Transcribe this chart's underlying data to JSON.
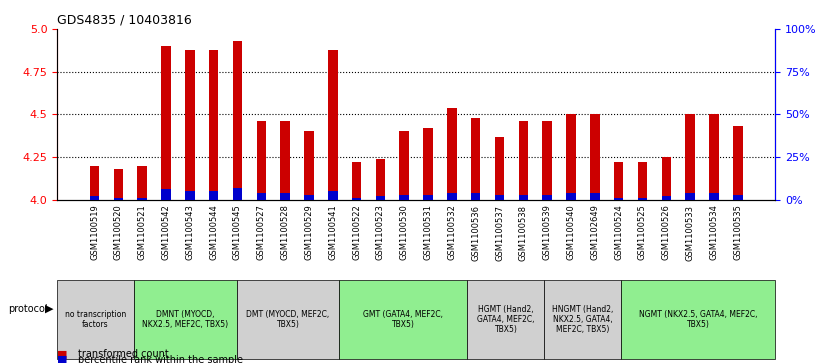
{
  "title": "GDS4835 / 10403816",
  "samples": [
    "GSM1100519",
    "GSM1100520",
    "GSM1100521",
    "GSM1100542",
    "GSM1100543",
    "GSM1100544",
    "GSM1100545",
    "GSM1100527",
    "GSM1100528",
    "GSM1100529",
    "GSM1100541",
    "GSM1100522",
    "GSM1100523",
    "GSM1100530",
    "GSM1100531",
    "GSM1100532",
    "GSM1100536",
    "GSM1100537",
    "GSM1100538",
    "GSM1100539",
    "GSM1100540",
    "GSM1102649",
    "GSM1100524",
    "GSM1100525",
    "GSM1100526",
    "GSM1100533",
    "GSM1100534",
    "GSM1100535"
  ],
  "red_values": [
    4.2,
    4.18,
    4.2,
    4.9,
    4.88,
    4.88,
    4.93,
    4.46,
    4.46,
    4.4,
    4.88,
    4.22,
    4.24,
    4.4,
    4.42,
    4.54,
    4.48,
    4.37,
    4.46,
    4.46,
    4.5,
    4.5,
    4.22,
    4.22,
    4.25,
    4.5,
    4.5,
    4.43
  ],
  "blue_values": [
    2,
    1,
    1,
    6,
    5,
    5,
    7,
    4,
    4,
    3,
    5,
    1,
    2,
    3,
    3,
    4,
    4,
    3,
    3,
    3,
    4,
    4,
    1,
    1,
    2,
    4,
    4,
    3
  ],
  "protocol_groups": [
    {
      "label": "no transcription\nfactors",
      "start": 0,
      "end": 3,
      "color": "#d0d0d0"
    },
    {
      "label": "DMNT (MYOCD,\nNKX2.5, MEF2C, TBX5)",
      "start": 3,
      "end": 7,
      "color": "#90EE90"
    },
    {
      "label": "DMT (MYOCD, MEF2C,\nTBX5)",
      "start": 7,
      "end": 11,
      "color": "#d0d0d0"
    },
    {
      "label": "GMT (GATA4, MEF2C,\nTBX5)",
      "start": 11,
      "end": 16,
      "color": "#90EE90"
    },
    {
      "label": "HGMT (Hand2,\nGATA4, MEF2C,\nTBX5)",
      "start": 16,
      "end": 19,
      "color": "#d0d0d0"
    },
    {
      "label": "HNGMT (Hand2,\nNKX2.5, GATA4,\nMEF2C, TBX5)",
      "start": 19,
      "end": 22,
      "color": "#d0d0d0"
    },
    {
      "label": "NGMT (NKX2.5, GATA4, MEF2C,\nTBX5)",
      "start": 22,
      "end": 28,
      "color": "#90EE90"
    }
  ],
  "ylim_left": [
    4.0,
    5.0
  ],
  "ylim_right": [
    0,
    100
  ],
  "yticks_left": [
    4.0,
    4.25,
    4.5,
    4.75,
    5.0
  ],
  "yticks_right": [
    0,
    25,
    50,
    75,
    100
  ],
  "red_color": "#CC0000",
  "blue_color": "#0000CC",
  "bar_width": 0.4,
  "blue_bar_width": 0.4,
  "background_color": "#ffffff",
  "grid_color": "#000000"
}
